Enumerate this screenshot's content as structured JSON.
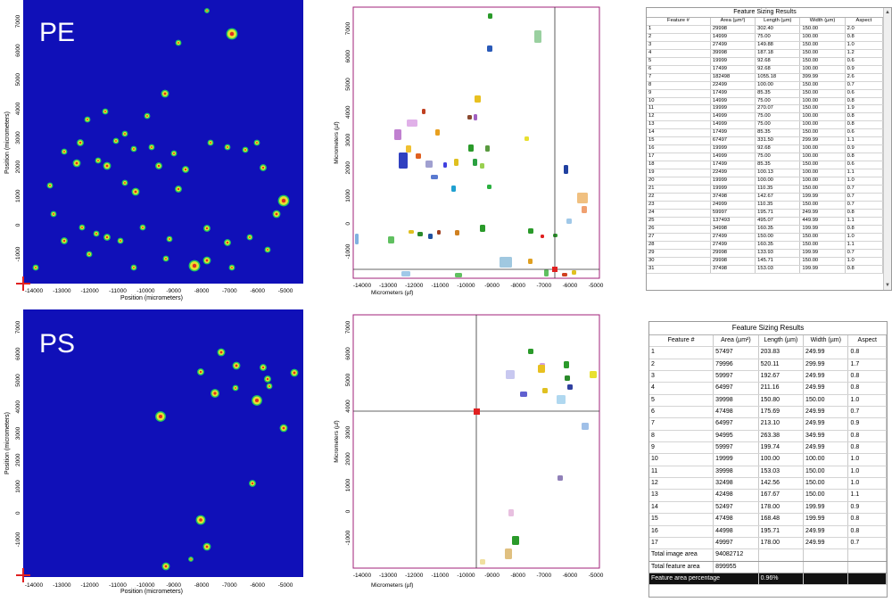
{
  "colors": {
    "heatmap_background": "#1010b8",
    "cursor_marker": "#e02020",
    "plot_frame": "#a0207a"
  },
  "pe": {
    "label": "PE",
    "heatmap": {
      "ylabel": "Position (micrometers)",
      "xlabel": "Position (micrometers)",
      "xticks": [
        "-14000",
        "-13000",
        "-12000",
        "-11000",
        "-10000",
        "-9000",
        "-8000",
        "-7000",
        "-6000",
        "-5000"
      ],
      "yticks": [
        "7000",
        "6000",
        "5000",
        "4000",
        "3000",
        "2000",
        "1000",
        "0",
        "-1000"
      ]
    },
    "scatter": {
      "ylabel": "Micrometers (µf)",
      "xlabel": "Micrometers (µf)",
      "xticks": [
        "-14000",
        "-13000",
        "-12000",
        "-11000",
        "-10000",
        "-9000",
        "-8000",
        "-7000",
        "-6000",
        "-5000"
      ],
      "yticks": [
        "7000",
        "6000",
        "5000",
        "4000",
        "3000",
        "2000",
        "1000",
        "0",
        "-1000"
      ]
    },
    "table": {
      "title": "Feature Sizing Results",
      "headers": [
        "Feature #",
        "Area (µm²)",
        "Length (µm)",
        "Width (µm)",
        "Aspect"
      ],
      "rows": [
        [
          "1",
          "29998",
          "302.40",
          "150.00",
          "2.0"
        ],
        [
          "2",
          "14999",
          "75.00",
          "100.00",
          "0.8"
        ],
        [
          "3",
          "27499",
          "149.88",
          "150.00",
          "1.0"
        ],
        [
          "4",
          "39998",
          "187.18",
          "150.00",
          "1.2"
        ],
        [
          "5",
          "19999",
          "92.68",
          "150.00",
          "0.6"
        ],
        [
          "6",
          "17499",
          "92.68",
          "100.00",
          "0.9"
        ],
        [
          "7",
          "182498",
          "1055.18",
          "399.99",
          "2.6"
        ],
        [
          "8",
          "22499",
          "100.00",
          "150.00",
          "0.7"
        ],
        [
          "9",
          "17499",
          "85.35",
          "150.00",
          "0.6"
        ],
        [
          "10",
          "14999",
          "75.00",
          "100.00",
          "0.8"
        ],
        [
          "11",
          "19999",
          "270.07",
          "150.00",
          "1.9"
        ],
        [
          "12",
          "14999",
          "75.00",
          "100.00",
          "0.8"
        ],
        [
          "13",
          "14999",
          "75.00",
          "100.00",
          "0.8"
        ],
        [
          "14",
          "17499",
          "85.35",
          "150.00",
          "0.6"
        ],
        [
          "15",
          "67497",
          "331.50",
          "299.99",
          "1.1"
        ],
        [
          "16",
          "19999",
          "92.68",
          "100.00",
          "0.9"
        ],
        [
          "17",
          "14999",
          "75.00",
          "100.00",
          "0.8"
        ],
        [
          "18",
          "17499",
          "85.35",
          "150.00",
          "0.6"
        ],
        [
          "19",
          "22499",
          "100.13",
          "100.00",
          "1.1"
        ],
        [
          "20",
          "19999",
          "100.00",
          "100.00",
          "1.0"
        ],
        [
          "21",
          "19999",
          "110.35",
          "150.00",
          "0.7"
        ],
        [
          "22",
          "37498",
          "142.67",
          "199.99",
          "0.7"
        ],
        [
          "23",
          "24999",
          "110.35",
          "150.00",
          "0.7"
        ],
        [
          "24",
          "59997",
          "195.71",
          "249.99",
          "0.8"
        ],
        [
          "25",
          "137493",
          "495.07",
          "449.99",
          "1.1"
        ],
        [
          "26",
          "34998",
          "160.35",
          "199.99",
          "0.8"
        ],
        [
          "27",
          "27499",
          "150.00",
          "150.00",
          "1.0"
        ],
        [
          "28",
          "27499",
          "160.35",
          "150.00",
          "1.1"
        ],
        [
          "29",
          "29998",
          "133.93",
          "199.99",
          "0.7"
        ],
        [
          "30",
          "29998",
          "145.71",
          "150.00",
          "1.0"
        ],
        [
          "31",
          "37498",
          "153.03",
          "199.99",
          "0.8"
        ]
      ]
    }
  },
  "ps": {
    "label": "PS",
    "heatmap": {
      "ylabel": "Position (micrometers)",
      "xlabel": "Position (micrometers)",
      "xticks": [
        "-14000",
        "-13000",
        "-12000",
        "-11000",
        "-10000",
        "-9000",
        "-8000",
        "-7000",
        "-6000",
        "-5000"
      ],
      "yticks": [
        "7000",
        "6000",
        "5000",
        "4000",
        "3000",
        "2000",
        "1000",
        "0",
        "-1000"
      ]
    },
    "scatter": {
      "ylabel": "Micrometers (µf)",
      "xlabel": "Micrometers (µf)",
      "xticks": [
        "-14000",
        "-13000",
        "-12000",
        "-11000",
        "-10000",
        "-9000",
        "-8000",
        "-7000",
        "-6000",
        "-5000"
      ],
      "yticks": [
        "7000",
        "6000",
        "5000",
        "4000",
        "3000",
        "2000",
        "1000",
        "0",
        "-1000"
      ]
    },
    "table": {
      "title": "Feature Sizing Results",
      "headers": [
        "Feature #",
        "Area (µm²)",
        "Length (µm)",
        "Width (µm)",
        "Aspect"
      ],
      "rows": [
        [
          "1",
          "57497",
          "203.83",
          "249.99",
          "0.8"
        ],
        [
          "2",
          "79996",
          "520.11",
          "299.99",
          "1.7"
        ],
        [
          "3",
          "59997",
          "192.67",
          "249.99",
          "0.8"
        ],
        [
          "4",
          "64997",
          "211.16",
          "249.99",
          "0.8"
        ],
        [
          "5",
          "39998",
          "150.80",
          "150.00",
          "1.0"
        ],
        [
          "6",
          "47498",
          "175.69",
          "249.99",
          "0.7"
        ],
        [
          "7",
          "64997",
          "213.10",
          "249.99",
          "0.9"
        ],
        [
          "8",
          "94995",
          "263.38",
          "349.99",
          "0.8"
        ],
        [
          "9",
          "59997",
          "199.74",
          "249.99",
          "0.8"
        ],
        [
          "10",
          "19999",
          "100.00",
          "100.00",
          "1.0"
        ],
        [
          "11",
          "39998",
          "153.03",
          "150.00",
          "1.0"
        ],
        [
          "12",
          "32498",
          "142.56",
          "150.00",
          "1.0"
        ],
        [
          "13",
          "42498",
          "167.67",
          "150.00",
          "1.1"
        ],
        [
          "14",
          "52497",
          "178.00",
          "199.99",
          "0.9"
        ],
        [
          "15",
          "47498",
          "168.48",
          "199.99",
          "0.8"
        ],
        [
          "16",
          "44998",
          "195.71",
          "249.99",
          "0.8"
        ],
        [
          "17",
          "49997",
          "178.00",
          "249.99",
          "0.7"
        ]
      ],
      "total_image_area_label": "Total image area",
      "total_image_area": "94082712",
      "total_feature_area_label": "Total feature area",
      "total_feature_area": "899955",
      "feature_area_percentage_label": "Feature area percentage",
      "feature_area_percentage": "0.96%"
    }
  }
}
